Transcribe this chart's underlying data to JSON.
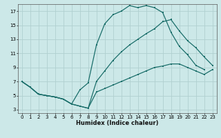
{
  "xlabel": "Humidex (Indice chaleur)",
  "bg_color": "#cce8e8",
  "grid_color": "#b0d0d0",
  "line_color": "#1a6e6a",
  "xlim": [
    -0.5,
    23.5
  ],
  "ylim": [
    2.5,
    18.0
  ],
  "xticks": [
    0,
    1,
    2,
    3,
    4,
    5,
    6,
    7,
    8,
    9,
    10,
    11,
    12,
    13,
    14,
    15,
    16,
    17,
    18,
    19,
    20,
    21,
    22,
    23
  ],
  "yticks": [
    3,
    5,
    7,
    9,
    11,
    13,
    15,
    17
  ],
  "line1_x": [
    0,
    1,
    2,
    3,
    4,
    5,
    6,
    7,
    8,
    9,
    10,
    11,
    12,
    13,
    14,
    15,
    16,
    17,
    18,
    19,
    20,
    21,
    22,
    23
  ],
  "line1_y": [
    7.0,
    6.2,
    5.2,
    5.0,
    4.8,
    4.5,
    3.8,
    5.8,
    6.8,
    12.2,
    15.2,
    16.5,
    17.0,
    17.8,
    17.5,
    17.8,
    17.5,
    16.8,
    14.0,
    12.0,
    10.8,
    9.3,
    8.7,
    null
  ],
  "line2_x": [
    0,
    1,
    2,
    3,
    4,
    5,
    6,
    7,
    8,
    9,
    10,
    11,
    12,
    13,
    14,
    15,
    16,
    17,
    18,
    19,
    20,
    21,
    22,
    23
  ],
  "line2_y": [
    7.0,
    6.2,
    5.2,
    5.0,
    4.8,
    4.5,
    3.8,
    3.5,
    3.2,
    7.0,
    8.5,
    10.0,
    11.2,
    12.2,
    13.0,
    13.8,
    14.5,
    15.5,
    15.8,
    14.2,
    12.8,
    11.8,
    10.5,
    9.3
  ],
  "line3_x": [
    0,
    1,
    2,
    3,
    4,
    5,
    6,
    7,
    8,
    9,
    10,
    11,
    12,
    13,
    14,
    15,
    16,
    17,
    18,
    19,
    20,
    21,
    22,
    23
  ],
  "line3_y": [
    7.0,
    6.2,
    5.2,
    5.0,
    4.8,
    4.5,
    3.8,
    3.5,
    3.2,
    5.5,
    6.0,
    6.5,
    7.0,
    7.5,
    8.0,
    8.5,
    9.0,
    9.2,
    9.5,
    9.5,
    9.0,
    8.5,
    8.0,
    8.7
  ]
}
